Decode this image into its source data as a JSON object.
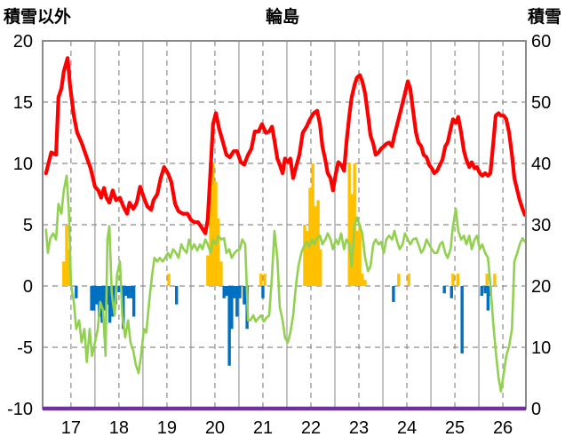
{
  "chart_data": {
    "type": "line",
    "title": "輪島",
    "ylabel_left": "積雪以外",
    "ylabel_right": "積雪",
    "xlim": [
      16.41,
      26.48
    ],
    "ylim_left": [
      -10,
      20
    ],
    "ylim_right": [
      0,
      60
    ],
    "xticks": [
      17,
      18,
      19,
      20,
      21,
      22,
      23,
      24,
      25,
      26
    ],
    "yticks_left": [
      20,
      15,
      10,
      5,
      0,
      -5,
      -10
    ],
    "yticks_right": [
      60,
      50,
      40,
      30,
      20,
      10,
      0
    ],
    "grid": true,
    "series": [
      {
        "type": "bar",
        "color": "#ffc000",
        "x": [
          16.85,
          16.91,
          16.96,
          19.04,
          19.85,
          19.91,
          19.96,
          20.02,
          20.07,
          20.13,
          20.96,
          21.04,
          21.87,
          21.93,
          21.98,
          22.04,
          22.09,
          22.15,
          22.2,
          22.8,
          22.85,
          22.91,
          22.96,
          23.02,
          23.07,
          23.13,
          23.83,
          24.04,
          24.96,
          25.06,
          25.67,
          25.83
        ],
        "y": [
          2.0,
          5.0,
          3.0,
          1.0,
          2.5,
          10.0,
          10.0,
          8.5,
          5.5,
          2.0,
          1.0,
          1.0,
          5.0,
          4.5,
          8.0,
          10.0,
          6.5,
          7.0,
          3.0,
          10.0,
          7.5,
          10.0,
          4.5,
          5.0,
          1.0,
          0.5,
          1.0,
          1.0,
          1.0,
          1.0,
          1.0,
          1.0
        ]
      },
      {
        "type": "bar",
        "color": "#0070c0",
        "x": [
          17.11,
          17.43,
          17.48,
          17.54,
          17.59,
          17.65,
          17.7,
          17.76,
          17.81,
          17.87,
          17.93,
          18.0,
          18.09,
          18.15,
          18.2,
          18.26,
          18.31,
          19.2,
          20.19,
          20.24,
          20.3,
          20.35,
          20.41,
          20.46,
          20.52,
          20.61,
          20.67,
          21.0,
          23.72,
          24.78,
          24.93,
          25.15,
          25.56,
          25.63,
          25.69,
          25.74
        ],
        "y": [
          -1.0,
          -2.0,
          -2.0,
          -1.5,
          -2.5,
          -3.0,
          -2.0,
          -1.5,
          -3.0,
          -2.5,
          -1.5,
          -0.5,
          -3.5,
          -0.8,
          -1.0,
          -1.0,
          -2.5,
          -1.5,
          -1.0,
          -0.8,
          -6.5,
          -3.5,
          -1.0,
          -2.5,
          -1.0,
          -1.5,
          -3.5,
          -1.0,
          -1.3,
          -0.6,
          -1.0,
          -5.5,
          -0.8,
          -0.6,
          -2.0,
          -0.8
        ]
      },
      {
        "type": "line",
        "color": "#92d050",
        "x": [
          16.48,
          16.52,
          16.57,
          16.63,
          16.69,
          16.74,
          16.8,
          16.85,
          16.91,
          16.96,
          17.0,
          17.06,
          17.11,
          17.17,
          17.22,
          17.28,
          17.33,
          17.39,
          17.44,
          17.5,
          17.56,
          17.61,
          17.67,
          17.72,
          17.76,
          17.8,
          17.85,
          17.91,
          17.96,
          18.02,
          18.07,
          18.13,
          18.19,
          18.24,
          18.3,
          18.35,
          18.41,
          18.46,
          18.52,
          18.57,
          18.63,
          18.69,
          18.74,
          18.8,
          18.85,
          18.91,
          18.96,
          19.02,
          19.07,
          19.13,
          19.19,
          19.24,
          19.3,
          19.35,
          19.41,
          19.46,
          19.52,
          19.57,
          19.63,
          19.69,
          19.74,
          19.8,
          19.85,
          19.91,
          19.96,
          20.02,
          20.07,
          20.13,
          20.19,
          20.24,
          20.3,
          20.35,
          20.41,
          20.46,
          20.52,
          20.57,
          20.63,
          20.69,
          20.74,
          20.8,
          20.85,
          20.91,
          20.96,
          21.02,
          21.07,
          21.13,
          21.19,
          21.24,
          21.3,
          21.35,
          21.41,
          21.46,
          21.52,
          21.57,
          21.63,
          21.69,
          21.74,
          21.8,
          21.85,
          21.91,
          21.96,
          22.02,
          22.07,
          22.13,
          22.19,
          22.24,
          22.3,
          22.35,
          22.41,
          22.46,
          22.52,
          22.57,
          22.63,
          22.69,
          22.74,
          22.8,
          22.85,
          22.91,
          22.96,
          23.02,
          23.07,
          23.13,
          23.19,
          23.24,
          23.3,
          23.35,
          23.41,
          23.46,
          23.52,
          23.57,
          23.63,
          23.69,
          23.74,
          23.8,
          23.85,
          23.91,
          23.96,
          24.02,
          24.07,
          24.13,
          24.19,
          24.24,
          24.3,
          24.35,
          24.41,
          24.46,
          24.52,
          24.57,
          24.63,
          24.69,
          24.74,
          24.8,
          24.85,
          24.91,
          24.96,
          25.02,
          25.07,
          25.13,
          25.19,
          25.24,
          25.3,
          25.35,
          25.41,
          25.46,
          25.52,
          25.57,
          25.63,
          25.69,
          25.74,
          25.8,
          25.85,
          25.91,
          25.96,
          26.02,
          26.07,
          26.13,
          26.19,
          26.24,
          26.3,
          26.35,
          26.41,
          26.46
        ],
        "y": [
          4.6,
          2.7,
          3.9,
          4.3,
          3.8,
          6.7,
          5.9,
          7.8,
          9.0,
          5.9,
          0.1,
          -1.3,
          -3.5,
          -2.8,
          -4.6,
          -3.5,
          -6.2,
          -3.5,
          -5.7,
          -4.6,
          -3.5,
          -1.3,
          -2.0,
          -5.7,
          3.8,
          4.9,
          -0.6,
          -2.4,
          0.9,
          2.0,
          -2.4,
          -4.2,
          -2.8,
          -4.6,
          -5.3,
          -6.4,
          -7.1,
          -5.7,
          -3.5,
          -3.8,
          -1.3,
          0.9,
          2.3,
          2.0,
          2.3,
          2.0,
          2.3,
          2.7,
          2.3,
          3.0,
          2.7,
          2.3,
          3.4,
          3.0,
          2.7,
          3.8,
          3.0,
          3.4,
          2.9,
          3.4,
          3.0,
          3.8,
          3.4,
          2.7,
          3.8,
          3.4,
          4.1,
          3.8,
          3.9,
          2.7,
          3.0,
          2.3,
          2.7,
          2.9,
          3.0,
          3.8,
          3.4,
          -2.8,
          -2.8,
          -2.4,
          -2.9,
          -2.6,
          -2.4,
          -2.9,
          -2.6,
          -2.4,
          0.9,
          4.5,
          2.3,
          -1.7,
          -2.8,
          -4.2,
          -4.6,
          -3.8,
          -2.4,
          0.1,
          1.6,
          2.7,
          3.2,
          3.6,
          3.2,
          3.8,
          3.4,
          3.9,
          4.1,
          3.4,
          3.8,
          4.3,
          3.8,
          3.0,
          3.8,
          3.4,
          4.3,
          3.0,
          3.8,
          3.4,
          1.6,
          4.9,
          5.6,
          4.9,
          4.3,
          2.3,
          1.2,
          1.6,
          3.4,
          3.8,
          3.4,
          3.6,
          2.7,
          3.8,
          4.1,
          3.8,
          4.5,
          3.6,
          3.0,
          3.4,
          4.3,
          3.8,
          3.4,
          3.8,
          3.9,
          3.4,
          2.7,
          3.0,
          3.8,
          3.4,
          3.0,
          2.7,
          2.7,
          3.4,
          3.6,
          2.7,
          2.3,
          3.0,
          4.9,
          6.3,
          4.5,
          3.8,
          4.1,
          3.4,
          4.1,
          3.0,
          3.8,
          4.1,
          3.0,
          3.4,
          2.7,
          2.3,
          0.1,
          -3.1,
          -5.3,
          -7.5,
          -8.6,
          -7.1,
          -5.7,
          -4.9,
          -3.5,
          2.0,
          2.7,
          3.4,
          3.9,
          3.6
        ]
      },
      {
        "type": "line",
        "color": "#ff0000",
        "x": [
          16.48,
          16.59,
          16.69,
          16.74,
          16.8,
          16.85,
          16.93,
          16.98,
          17.06,
          17.13,
          17.22,
          17.31,
          17.41,
          17.5,
          17.57,
          17.63,
          17.69,
          17.74,
          17.8,
          17.87,
          17.94,
          18.02,
          18.09,
          18.17,
          18.22,
          18.3,
          18.37,
          18.44,
          18.52,
          18.59,
          18.67,
          18.72,
          18.8,
          18.87,
          18.94,
          19.02,
          19.09,
          19.17,
          19.24,
          19.33,
          19.43,
          19.5,
          19.57,
          19.65,
          19.72,
          19.8,
          19.85,
          19.91,
          19.96,
          20.02,
          20.09,
          20.17,
          20.24,
          20.31,
          20.39,
          20.46,
          20.54,
          20.61,
          20.69,
          20.76,
          20.83,
          20.91,
          20.98,
          21.06,
          21.13,
          21.19,
          21.24,
          21.3,
          21.35,
          21.41,
          21.46,
          21.52,
          21.57,
          21.63,
          21.69,
          21.76,
          21.83,
          21.91,
          21.98,
          22.06,
          22.13,
          22.19,
          22.24,
          22.3,
          22.35,
          22.41,
          22.46,
          22.52,
          22.57,
          22.63,
          22.69,
          22.74,
          22.8,
          22.85,
          22.91,
          22.96,
          23.02,
          23.07,
          23.13,
          23.19,
          23.24,
          23.3,
          23.35,
          23.41,
          23.46,
          23.52,
          23.57,
          23.63,
          23.69,
          23.74,
          23.8,
          23.87,
          23.94,
          24.02,
          24.07,
          24.13,
          24.19,
          24.24,
          24.3,
          24.35,
          24.41,
          24.46,
          24.52,
          24.57,
          24.63,
          24.69,
          24.74,
          24.8,
          24.85,
          24.91,
          24.96,
          25.02,
          25.07,
          25.13,
          25.19,
          25.24,
          25.3,
          25.35,
          25.41,
          25.46,
          25.52,
          25.57,
          25.63,
          25.69,
          25.74,
          25.8,
          25.85,
          25.91,
          25.96,
          26.02,
          26.07,
          26.13,
          26.19,
          26.24,
          26.3,
          26.35,
          26.41,
          26.46
        ],
        "y": [
          9.2,
          10.9,
          10.7,
          15.4,
          16.1,
          17.5,
          18.6,
          16.4,
          13.9,
          12.5,
          11.7,
          10.7,
          9.6,
          8.1,
          7.8,
          7.2,
          8.0,
          7.2,
          6.8,
          7.8,
          7.0,
          7.2,
          6.5,
          5.9,
          6.8,
          6.3,
          6.8,
          8.1,
          7.2,
          6.5,
          6.2,
          7.0,
          7.5,
          8.8,
          9.7,
          9.2,
          8.5,
          6.7,
          6.1,
          5.9,
          5.9,
          5.4,
          5.2,
          5.2,
          4.8,
          4.3,
          5.4,
          9.6,
          13.2,
          14.1,
          12.8,
          11.7,
          10.7,
          10.5,
          11.0,
          11.0,
          10.1,
          9.9,
          10.7,
          11.2,
          12.6,
          12.6,
          13.2,
          12.5,
          12.6,
          13.0,
          11.9,
          10.4,
          9.9,
          9.2,
          10.4,
          10.1,
          10.4,
          8.8,
          9.7,
          10.7,
          12.5,
          13.0,
          13.6,
          14.1,
          14.3,
          13.2,
          11.4,
          10.3,
          9.2,
          8.8,
          7.8,
          9.2,
          10.1,
          9.9,
          9.4,
          11.7,
          13.9,
          15.4,
          16.4,
          17.0,
          17.2,
          16.7,
          15.7,
          13.9,
          12.3,
          11.6,
          10.7,
          10.9,
          11.2,
          11.4,
          11.6,
          11.7,
          11.4,
          12.3,
          13.2,
          14.3,
          15.4,
          16.7,
          16.1,
          14.3,
          12.5,
          11.7,
          11.4,
          10.7,
          10.5,
          9.9,
          9.6,
          9.2,
          9.4,
          9.9,
          10.3,
          11.4,
          11.7,
          12.8,
          13.6,
          13.3,
          13.8,
          12.5,
          11.0,
          10.3,
          9.7,
          10.1,
          9.6,
          9.7,
          9.2,
          9.0,
          9.2,
          9.0,
          9.2,
          11.7,
          13.9,
          14.1,
          13.9,
          13.9,
          13.6,
          12.5,
          10.7,
          8.8,
          7.8,
          7.0,
          6.3,
          5.8
        ]
      }
    ],
    "series_right": [
      {
        "type": "line",
        "color": "#7030a0",
        "x": [
          16.41,
          26.48
        ],
        "y": [
          0,
          0
        ]
      }
    ]
  }
}
